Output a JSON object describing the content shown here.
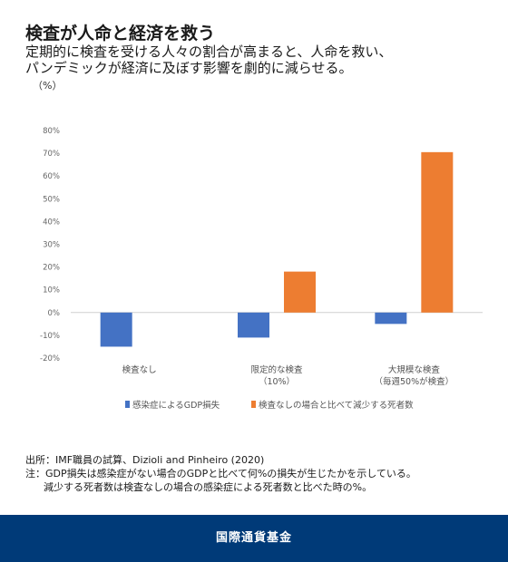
{
  "header": {
    "title": "検査が人命と経済を救う",
    "subtitle_line1": "定期的に検査を受ける人々の割合が高まると、人命を救い、",
    "subtitle_line2": "パンデミックが経済に及ぼす影響を劇的に減らせる。",
    "unit": "（%）"
  },
  "chart_data": {
    "type": "bar",
    "categories": [
      [
        "検査なし"
      ],
      [
        "限定的な検査",
        "（10%）"
      ],
      [
        "大規模な検査",
        "（毎週50%が検査）"
      ]
    ],
    "series": [
      {
        "name": "感染症によるGDP損失",
        "color": "#4472c4",
        "values": [
          -15,
          -11,
          -5
        ]
      },
      {
        "name": "検査なしの場合と比べて減少する死者数",
        "color": "#ed7d31",
        "values": [
          0,
          18,
          70.5
        ]
      }
    ],
    "ylim": [
      -20,
      80
    ],
    "yticks": [
      80,
      70,
      60,
      50,
      40,
      30,
      20,
      10,
      0,
      -10,
      -20
    ],
    "ytick_suffix": "%",
    "grid": false,
    "legend_position": "bottom"
  },
  "footnotes": {
    "source": "出所：IMF職員の試算、Dizioli and Pinheiro (2020)",
    "note_line1": "注：GDP損失は感染症がない場合のGDPと比べて何%の損失が生じたかを示している。",
    "note_line2": "減少する死者数は検査なしの場合の感染症による死者数と比べた時の%。"
  },
  "footer": {
    "label": "国際通貨基金"
  },
  "colors": {
    "footer_bg": "#003a78",
    "gdp_bar": "#4472c4",
    "deaths_bar": "#ed7d31"
  }
}
